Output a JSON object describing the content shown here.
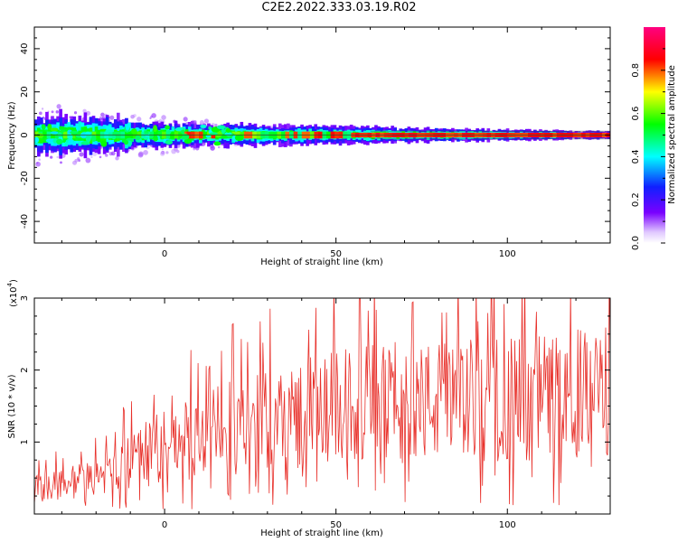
{
  "title": "C2E2.2022.333.03.19.R02",
  "colors": {
    "axis": "#000000",
    "snr_line": "#e8302a",
    "center_line": "#2e4a2e"
  },
  "chart_data": [
    {
      "type": "heatmap",
      "xlabel": "Height of straight line (km)",
      "ylabel": "Frequency (Hz)",
      "xlim": [
        -38,
        130
      ],
      "ylim": [
        -50,
        50
      ],
      "xticks": [
        0,
        50,
        100
      ],
      "yticks": [
        -40,
        -20,
        0,
        20,
        40
      ],
      "colorbar": {
        "label": "Normalized spectral amplitude",
        "range": [
          0,
          1
        ],
        "ticks": [
          0.0,
          0.2,
          0.4,
          0.6,
          0.8
        ],
        "colormap": "rainbow (white-violet-blue-cyan-green-yellow-red-magenta)"
      },
      "description_values": {
        "center_frequency_hz": 0,
        "band_halfwidth_hz_near_start": 6,
        "band_halfwidth_hz_near_end": 1.5,
        "amplitude_trend": "increasing with height"
      }
    },
    {
      "type": "line",
      "xlabel": "Height of straight line (km)",
      "ylabel": "SNR (10 * v/v)",
      "y_multiplier_label": "(x10",
      "y_multiplier_exp": "4",
      "y_multiplier_close": ")",
      "xlim": [
        -38,
        130
      ],
      "ylim": [
        0,
        3
      ],
      "xticks": [
        0,
        50,
        100
      ],
      "yticks": [
        1,
        2,
        3
      ],
      "series": [
        {
          "color": "#e8302a",
          "trend_x": [
            -38,
            -20,
            0,
            20,
            40,
            60,
            80,
            100,
            130
          ],
          "trend_y": [
            0.35,
            0.5,
            0.95,
            1.2,
            1.4,
            1.55,
            1.55,
            1.6,
            1.7
          ]
        }
      ]
    }
  ]
}
